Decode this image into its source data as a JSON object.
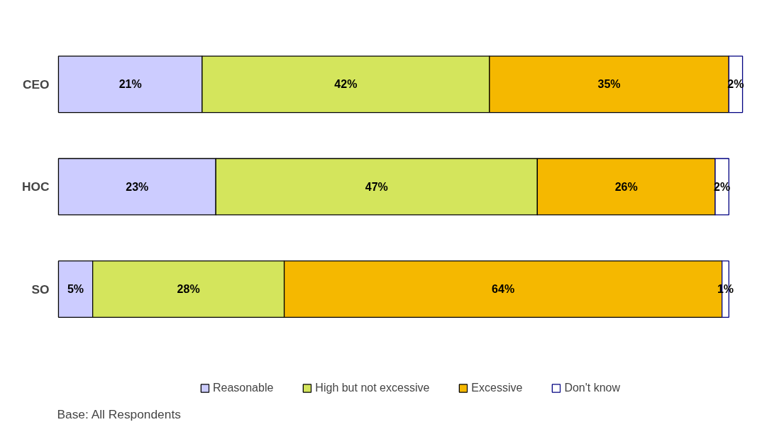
{
  "chart_data": {
    "type": "bar",
    "orientation": "horizontal",
    "stacked": true,
    "categories": [
      "CEO",
      "HOC",
      "SO"
    ],
    "series": [
      {
        "name": "Reasonable",
        "color": "#ccccff",
        "values": [
          21,
          23,
          5
        ],
        "value_labels": [
          "21%",
          "23%",
          "5%"
        ]
      },
      {
        "name": "High but not excessive",
        "color": "#d4e55c",
        "values": [
          42,
          47,
          28
        ],
        "value_labels": [
          "42%",
          "47%",
          "28%"
        ]
      },
      {
        "name": "Excessive",
        "color": "#f5b800",
        "values": [
          35,
          26,
          64
        ],
        "value_labels": [
          "35%",
          "26%",
          "64%"
        ]
      },
      {
        "name": "Don't know",
        "color": "#ffffff",
        "values": [
          2,
          2,
          1
        ],
        "value_labels": [
          "2%",
          "2%",
          "1%"
        ]
      }
    ],
    "legend": "bottom",
    "grid": false,
    "annotations": [
      "Base: All Respondents"
    ]
  }
}
